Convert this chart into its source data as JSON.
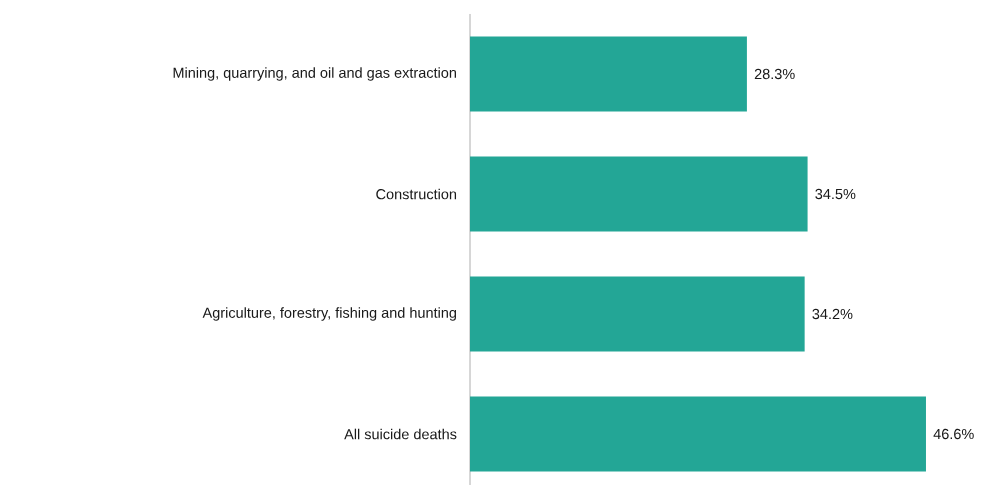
{
  "chart_data": {
    "type": "bar",
    "orientation": "horizontal",
    "categories": [
      "Mining, quarrying, and oil and gas extraction",
      "Construction",
      "Agriculture, forestry, fishing and hunting",
      "All suicide deaths"
    ],
    "values": [
      28.3,
      34.5,
      34.2,
      46.6
    ],
    "value_labels": [
      "28.3%",
      "34.5%",
      "34.2%",
      "46.6%"
    ],
    "color": "#23a696"
  }
}
